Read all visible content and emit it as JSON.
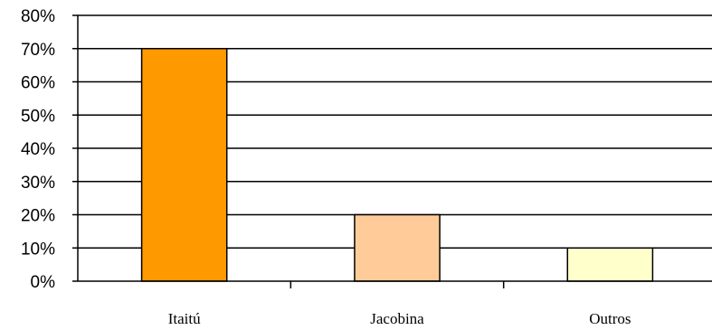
{
  "chart_data": {
    "type": "bar",
    "categories": [
      "Itaitú",
      "Jacobina",
      "Outros"
    ],
    "values": [
      0.7,
      0.2,
      0.1
    ],
    "ylim": [
      0,
      0.8
    ],
    "yticks": [
      "0%",
      "10%",
      "20%",
      "30%",
      "40%",
      "50%",
      "60%",
      "70%",
      "80%"
    ],
    "title": "",
    "xlabel": "",
    "ylabel": "",
    "grid": true,
    "legend": "none",
    "bar_colors": [
      "#FF9900",
      "#FFCC99",
      "#FFFFCC"
    ],
    "bar_border_color": "#000000",
    "gridline_color": "#000000"
  }
}
